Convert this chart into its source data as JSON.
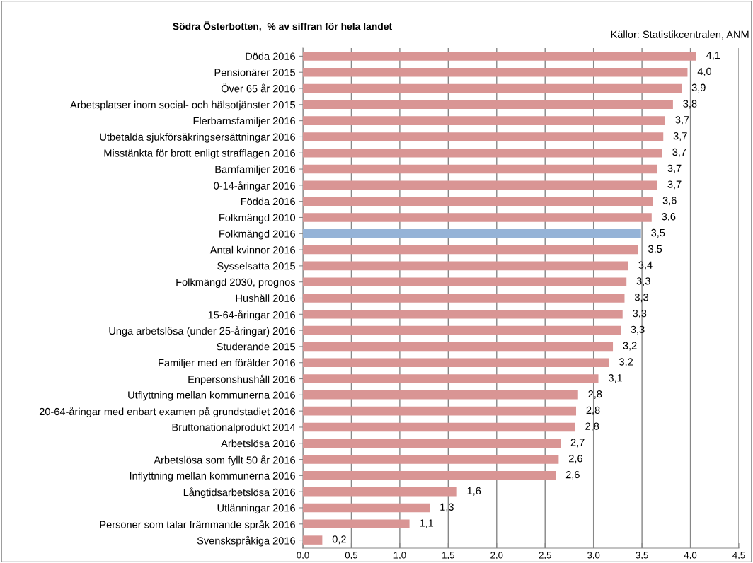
{
  "chart_data": {
    "type": "bar",
    "orientation": "horizontal",
    "title": "Södra Österbotten,  % av siffran för hela landet",
    "annotations": [
      "Källor: Statistikcentralen, ANM"
    ],
    "categories": [
      "Döda 2016",
      "Pensionärer 2015",
      "Över 65 år 2016",
      "Arbetsplatser inom social- och hälsotjänster 2015",
      "Flerbarnsfamiljer 2016",
      "Utbetalda sjukförsäkringsersättningar 2016",
      "Misstänkta för brott enligt strafflagen 2016",
      "Barnfamiljer 2016",
      "0-14-åringar 2016",
      "Födda 2016",
      "Folkmängd 2010",
      "Folkmängd 2016",
      "Antal kvinnor 2016",
      "Sysselsatta 2015",
      "Folkmängd 2030, prognos",
      "Hushåll 2016",
      "15-64-åringar 2016",
      "Unga arbetslösa (under 25-åringar) 2016",
      "Studerande 2015",
      "Familjer med en förälder 2016",
      "Enpersonshushåll 2016",
      "Utflyttning mellan kommunerna 2016",
      "20-64-åringar med enbart examen på grundstadiet 2016",
      "Bruttonationalprodukt 2014",
      "Arbetslösa 2016",
      "Arbetslösa som fyllt 50 år 2016",
      "Inflyttning mellan kommunerna 2016",
      "Långtidsarbetslösa 2016",
      "Utlänningar 2016",
      "Personer som talar främmande språk 2016",
      "Svenskspråkiga 2016"
    ],
    "values": [
      4.06,
      3.97,
      3.91,
      3.82,
      3.74,
      3.72,
      3.71,
      3.66,
      3.66,
      3.61,
      3.6,
      3.49,
      3.46,
      3.36,
      3.34,
      3.32,
      3.3,
      3.28,
      3.2,
      3.16,
      3.05,
      2.84,
      2.82,
      2.81,
      2.66,
      2.64,
      2.61,
      1.59,
      1.31,
      1.1,
      0.2
    ],
    "value_labels": [
      "4,1",
      "4,0",
      "3,9",
      "3,8",
      "3,7",
      "3,7",
      "3,7",
      "3,7",
      "3,7",
      "3,6",
      "3,6",
      "3,5",
      "3,5",
      "3,4",
      "3,3",
      "3,3",
      "3,3",
      "3,3",
      "3,2",
      "3,2",
      "3,1",
      "2,8",
      "2,8",
      "2,8",
      "2,7",
      "2,6",
      "2,6",
      "1,6",
      "1,3",
      "1,1",
      "0,2"
    ],
    "colors": [
      "#d99594",
      "#d99594",
      "#d99594",
      "#d99594",
      "#d99594",
      "#d99594",
      "#d99594",
      "#d99594",
      "#d99594",
      "#d99594",
      "#d99594",
      "#95b3d7",
      "#d99594",
      "#d99594",
      "#d99594",
      "#d99594",
      "#d99594",
      "#d99594",
      "#d99594",
      "#d99594",
      "#d99594",
      "#d99594",
      "#d99594",
      "#d99594",
      "#d99594",
      "#d99594",
      "#d99594",
      "#d99594",
      "#d99594",
      "#d99594",
      "#d99594"
    ],
    "xlim": [
      0,
      4.5
    ],
    "xticks": [
      {
        "value": 0,
        "label": "0,0"
      },
      {
        "value": 0.5,
        "label": "0,5"
      },
      {
        "value": 1,
        "label": "1,0"
      },
      {
        "value": 1.5,
        "label": "1,5"
      },
      {
        "value": 2,
        "label": "2,0"
      },
      {
        "value": 2.5,
        "label": "2,5"
      },
      {
        "value": 3,
        "label": "3,0"
      },
      {
        "value": 3.5,
        "label": "3,5"
      },
      {
        "value": 4,
        "label": "4,0"
      },
      {
        "value": 4.5,
        "label": "4,5"
      }
    ],
    "grid": "x",
    "legend": false
  }
}
